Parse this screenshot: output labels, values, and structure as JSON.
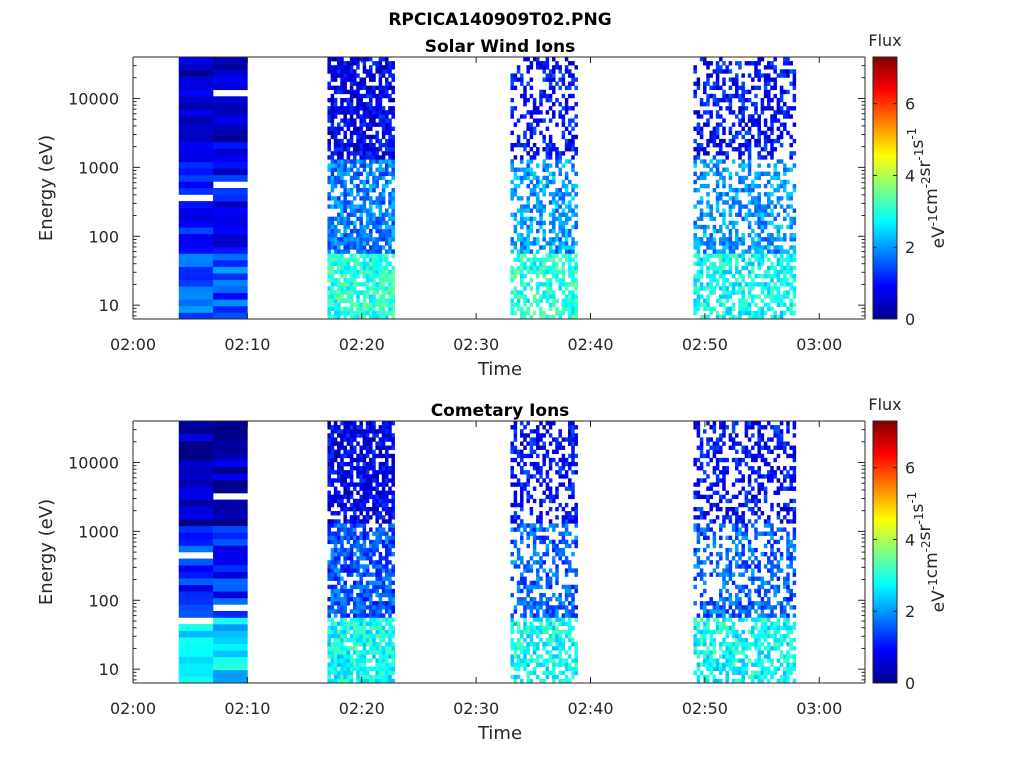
{
  "figure_title": "RPCICA140909T02.PNG",
  "chart_data": [
    {
      "type": "heatmap",
      "title": "Solar Wind Ions",
      "xlabel": "Time",
      "ylabel": "Energy (eV)",
      "yscale": "log",
      "x_tick_labels": [
        "02:00",
        "02:10",
        "02:20",
        "02:30",
        "02:40",
        "02:50",
        "03:00"
      ],
      "y_tick_labels": [
        "10",
        "100",
        "1000",
        "10000"
      ],
      "colorbar": {
        "title": "Flux",
        "unit_label": "eV-1cm-2sr-1s-1",
        "ticks": [
          "0",
          "2",
          "4",
          "6"
        ],
        "range": [
          0,
          7.3
        ],
        "colormap": "jet"
      },
      "data_blocks": [
        {
          "start": "02:04",
          "end": "02:10",
          "texture": "full-coverage",
          "low_energy_flux": 1.5,
          "mid_energy_flux": 1.0,
          "high_energy_flux": 0.6
        },
        {
          "start": "02:17",
          "end": "02:23",
          "texture": "pixelated",
          "low_energy_flux": 3.0,
          "mid_energy_flux": 1.8,
          "high_energy_flux": 0.8
        },
        {
          "start": "02:33",
          "end": "02:39",
          "texture": "sparse",
          "low_energy_flux": 3.0,
          "mid_energy_flux": 2.0,
          "high_energy_flux": 1.0
        },
        {
          "start": "02:49",
          "end": "02:58",
          "texture": "sparse",
          "low_energy_flux": 2.8,
          "mid_energy_flux": 2.0,
          "high_energy_flux": 1.0
        }
      ]
    },
    {
      "type": "heatmap",
      "title": "Cometary Ions",
      "xlabel": "Time",
      "ylabel": "Energy (eV)",
      "yscale": "log",
      "x_tick_labels": [
        "02:00",
        "02:10",
        "02:20",
        "02:30",
        "02:40",
        "02:50",
        "03:00"
      ],
      "y_tick_labels": [
        "10",
        "100",
        "1000",
        "10000"
      ],
      "colorbar": {
        "title": "Flux",
        "unit_label": "eV-1cm-2sr-1s-1",
        "ticks": [
          "0",
          "2",
          "4",
          "6"
        ],
        "range": [
          0,
          7.3
        ],
        "colormap": "jet"
      },
      "data_blocks": [
        {
          "start": "02:04",
          "end": "02:10",
          "texture": "full-coverage",
          "low_energy_flux": 2.5,
          "mid_energy_flux": 1.2,
          "high_energy_flux": 0.3
        },
        {
          "start": "02:17",
          "end": "02:23",
          "texture": "pixelated",
          "low_energy_flux": 2.8,
          "mid_energy_flux": 1.5,
          "high_energy_flux": 0.8
        },
        {
          "start": "02:33",
          "end": "02:39",
          "texture": "sparse",
          "low_energy_flux": 2.8,
          "mid_energy_flux": 1.6,
          "high_energy_flux": 1.0
        },
        {
          "start": "02:49",
          "end": "02:58",
          "texture": "sparse",
          "low_energy_flux": 2.8,
          "mid_energy_flux": 1.6,
          "high_energy_flux": 1.0
        }
      ]
    }
  ]
}
